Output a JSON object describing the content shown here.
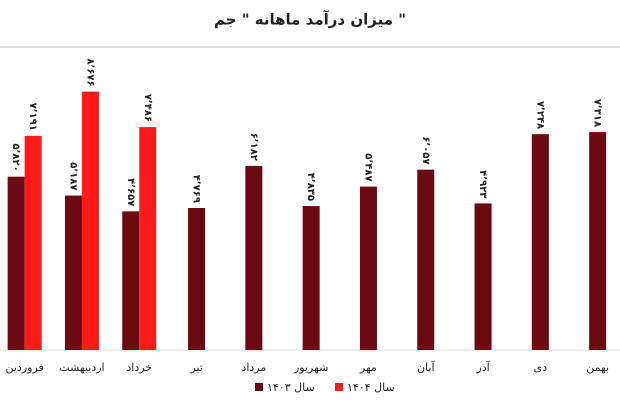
{
  "chart_data": {
    "type": "bar",
    "title": "میزان درآمد ماهانه \" جم \"",
    "categories": [
      "فروردین",
      "اردیبهشت",
      "خرداد",
      "تیر",
      "مرداد",
      "شهریور",
      "مهر",
      "آبان",
      "آذر",
      "دی",
      "بهمن"
    ],
    "series": [
      {
        "name": "سال ۱۴۰۳",
        "color": "#6b0a10",
        "values": [
          5820,
          5187,
          4657,
          4769,
          6182,
          4835,
          5487,
          6057,
          4923,
          7248,
          7318
        ],
        "value_labels": [
          "۵٬۸۲۰",
          "۵٬۱۸۷",
          "۴٬۶۵۷",
          "۴٬۷۶۹",
          "۶٬۱۸۲",
          "۴٬۸۳۵",
          "۵٬۴۸۷",
          "۶٬۰۵۷",
          "۴٬۹۲۳",
          "۷٬۲۴۸",
          "۷٬۳۱۸"
        ]
      },
      {
        "name": "سال ۱۴۰۴",
        "color": "#ff1a1a",
        "values": [
          7191,
          8676,
          7486,
          null,
          null,
          null,
          null,
          null,
          null,
          null,
          null
        ],
        "value_labels": [
          "۷٬۱۹۱",
          "۸٬۶۷۶",
          "۷٬۴۸۶",
          null,
          null,
          null,
          null,
          null,
          null,
          null,
          null
        ]
      }
    ],
    "ylim": [
      0,
      9000
    ]
  }
}
